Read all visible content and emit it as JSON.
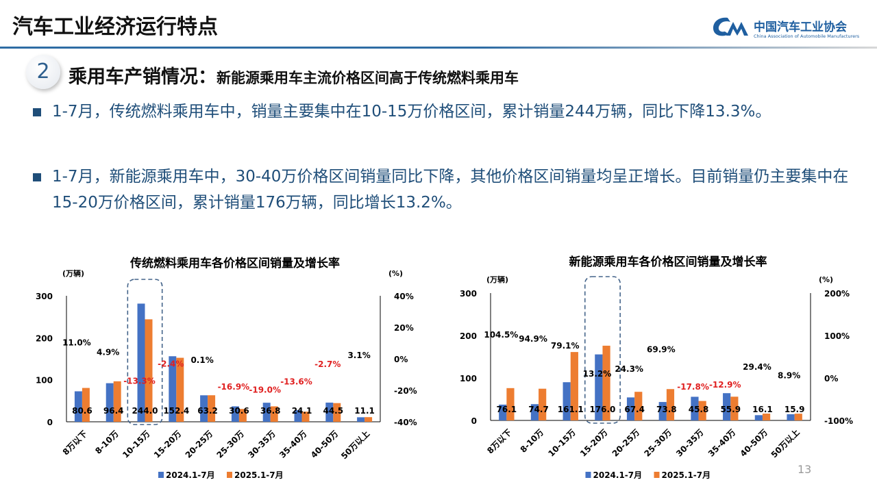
{
  "header": {
    "title": "汽车工业经济运行特点",
    "logo_cn": "中国汽车工业协会",
    "logo_en": "China Association of Automobile Manufacturers",
    "logo_mark": "CAAM"
  },
  "section": {
    "number": "2",
    "title": "乘用车产销情况：",
    "subtitle": "新能源乘用车主流价格区间高于传统燃料乘用车"
  },
  "bullets": [
    "1-7月，传统燃料乘用车中，销量主要集中在10-15万价格区间，累计销量244万辆，同比下降13.3%。",
    "1-7月，新能源乘用车中，30-40万价格区间销量同比下降，其他价格区间销量均呈正增长。目前销量仍主要集中在15-20万价格区间，累计销量176万辆，同比增长13.2%。"
  ],
  "page_number": "13",
  "colors": {
    "series_2024": "#4472c4",
    "series_2025": "#ed7d31",
    "negative_label": "#e02020",
    "accent": "#1f4e79"
  },
  "chart_data": [
    {
      "type": "bar",
      "title": "传统燃料乘用车各价格区间销量及增长率",
      "ylabel": "(万辆)",
      "y2label": "(%)",
      "ylim": [
        0,
        300
      ],
      "yticks": [
        0,
        100,
        200,
        300
      ],
      "y2lim": [
        -40,
        40
      ],
      "y2ticks": [
        "40%",
        "20%",
        "0%",
        "-20%",
        "-40%"
      ],
      "categories": [
        "8万以下",
        "8-10万",
        "10-15万",
        "15-20万",
        "20-25万",
        "25-30万",
        "30-35万",
        "35-40万",
        "40-50万",
        "50万以上"
      ],
      "series": [
        {
          "name": "2024.1-7月",
          "values": [
            72.6,
            91.9,
            281.4,
            156.1,
            63.1,
            36.8,
            45.4,
            27.9,
            45.7,
            10.8
          ]
        },
        {
          "name": "2025.1-7月",
          "values": [
            80.6,
            96.4,
            244.0,
            152.4,
            63.2,
            30.6,
            36.8,
            24.1,
            44.5,
            11.1
          ]
        }
      ],
      "value_labels": [
        "80.6",
        "96.4",
        "244.0",
        "152.4",
        "63.2",
        "30.6",
        "36.8",
        "24.1",
        "44.5",
        "11.1"
      ],
      "growth": [
        11.0,
        4.9,
        -13.3,
        -2.4,
        0.1,
        -16.9,
        -19.0,
        -13.6,
        -2.7,
        3.1
      ],
      "growth_labels": [
        "11.0%",
        "4.9%",
        "-13.3%",
        "-2.4%",
        "0.1%",
        "-16.9%",
        "-19.0%",
        "-13.6%",
        "-2.7%",
        "3.1%"
      ],
      "highlight_category": "10-15万",
      "legend": "bottom",
      "grid": false
    },
    {
      "type": "bar",
      "title": "新能源乘用车各价格区间销量及增长率",
      "ylabel": "(万辆)",
      "y2label": "(%)",
      "ylim": [
        0,
        300
      ],
      "yticks": [
        0,
        100,
        200,
        300
      ],
      "y2lim": [
        -100,
        200
      ],
      "y2ticks": [
        "200%",
        "100%",
        "0%",
        "-100%"
      ],
      "categories": [
        "8万以下",
        "8-10万",
        "10-15万",
        "15-20万",
        "20-25万",
        "25-30万",
        "30-35万",
        "35-40万",
        "40-50万",
        "50万以上"
      ],
      "series": [
        {
          "name": "2024.1-7月",
          "values": [
            37.2,
            38.3,
            90.0,
            155.5,
            54.2,
            43.4,
            55.7,
            64.2,
            12.4,
            14.6
          ]
        },
        {
          "name": "2025.1-7月",
          "values": [
            76.1,
            74.7,
            161.1,
            176.0,
            67.4,
            73.8,
            45.8,
            55.9,
            16.1,
            15.9
          ]
        }
      ],
      "value_labels": [
        "76.1",
        "74.7",
        "161.1",
        "176.0",
        "67.4",
        "73.8",
        "45.8",
        "55.9",
        "16.1",
        "15.9"
      ],
      "growth": [
        104.5,
        94.9,
        79.1,
        13.2,
        24.3,
        69.9,
        -17.8,
        -12.9,
        29.4,
        8.9
      ],
      "growth_labels": [
        "104.5%",
        "94.9%",
        "79.1%",
        "13.2%",
        "24.3%",
        "69.9%",
        "-17.8%",
        "-12.9%",
        "29.4%",
        "8.9%"
      ],
      "highlight_category": "15-20万",
      "legend": "bottom",
      "grid": false
    }
  ]
}
